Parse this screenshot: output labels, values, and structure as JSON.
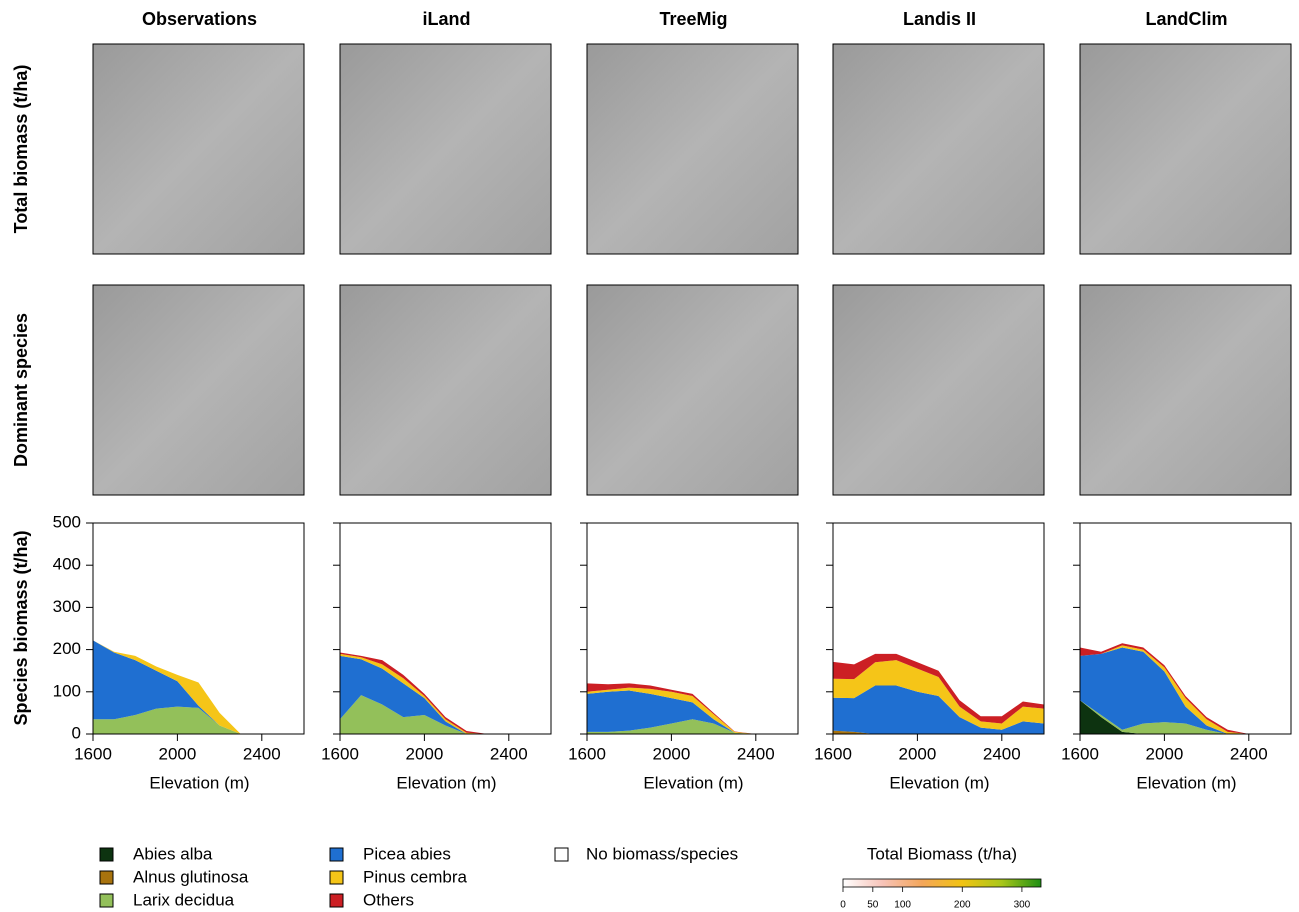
{
  "row_labels": [
    "Total biomass (t/ha)",
    "Dominant species"
  ],
  "legend_extra": "No biomass/species",
  "colorbar": {
    "title": "Total Biomass (t/ha)",
    "lim": [
      0,
      332
    ],
    "ticks": [
      0,
      50,
      100,
      200,
      300
    ],
    "colors": [
      "#ffffff",
      "#f7c3b8",
      "#f4a65a",
      "#f2c313",
      "#a9c61a",
      "#1f8f14"
    ]
  },
  "chart_data": [
    {
      "type": "area",
      "title": "Observations",
      "xlabel": "Elevation (m)",
      "ylabel": "Species biomass (t/ha)",
      "x": [
        1600,
        1700,
        1800,
        1900,
        2000,
        2100,
        2200,
        2300,
        2400,
        2500,
        2600
      ],
      "xlim": [
        1600,
        2600
      ],
      "xticks": [
        1600,
        2000,
        2400
      ],
      "ylim": [
        0,
        500
      ],
      "yticks": [
        0,
        100,
        200,
        300,
        400,
        500
      ],
      "series": [
        {
          "name": "Abies alba",
          "color": "#0d3310",
          "values": [
            0,
            0,
            0,
            0,
            0,
            0,
            0,
            0,
            0,
            0,
            0
          ]
        },
        {
          "name": "Alnus glutinosa",
          "color": "#a8730e",
          "values": [
            0,
            0,
            0,
            0,
            0,
            0,
            0,
            0,
            0,
            0,
            0
          ]
        },
        {
          "name": "Larix decidua",
          "color": "#93c05a",
          "values": [
            35,
            35,
            45,
            60,
            65,
            62,
            20,
            0,
            0,
            0,
            0
          ]
        },
        {
          "name": "Picea abies",
          "color": "#1f6fd1",
          "values": [
            187,
            158,
            130,
            90,
            60,
            5,
            0,
            0,
            0,
            0,
            0
          ]
        },
        {
          "name": "Pinus cembra",
          "color": "#f5c518",
          "values": [
            0,
            2,
            10,
            10,
            15,
            55,
            30,
            0,
            0,
            0,
            0
          ]
        },
        {
          "name": "Others",
          "color": "#cc1f24",
          "values": [
            0,
            0,
            0,
            0,
            0,
            0,
            0,
            0,
            0,
            0,
            0
          ]
        }
      ]
    },
    {
      "type": "area",
      "title": "iLand",
      "xlabel": "Elevation (m)",
      "x": [
        1600,
        1700,
        1800,
        1900,
        2000,
        2100,
        2200,
        2300,
        2400,
        2500,
        2600
      ],
      "xlim": [
        1600,
        2600
      ],
      "xticks": [
        1600,
        2000,
        2400
      ],
      "ylim": [
        0,
        500
      ],
      "yticks": [
        0,
        100,
        200,
        300,
        400,
        500
      ],
      "series": [
        {
          "name": "Abies alba",
          "color": "#0d3310",
          "values": [
            0,
            0,
            0,
            0,
            0,
            0,
            0,
            0,
            0,
            0,
            0
          ]
        },
        {
          "name": "Alnus glutinosa",
          "color": "#a8730e",
          "values": [
            0,
            0,
            0,
            0,
            0,
            0,
            0,
            0,
            0,
            0,
            0
          ]
        },
        {
          "name": "Larix decidua",
          "color": "#93c05a",
          "values": [
            35,
            92,
            70,
            40,
            45,
            20,
            0,
            0,
            0,
            0,
            0
          ]
        },
        {
          "name": "Picea abies",
          "color": "#1f6fd1",
          "values": [
            150,
            85,
            85,
            80,
            40,
            10,
            0,
            0,
            0,
            0,
            0
          ]
        },
        {
          "name": "Pinus cembra",
          "color": "#f5c518",
          "values": [
            5,
            5,
            10,
            12,
            5,
            5,
            3,
            0,
            0,
            0,
            0
          ]
        },
        {
          "name": "Others",
          "color": "#cc1f24",
          "values": [
            3,
            3,
            10,
            8,
            5,
            5,
            4,
            0,
            0,
            0,
            0
          ]
        }
      ]
    },
    {
      "type": "area",
      "title": "TreeMig",
      "xlabel": "Elevation (m)",
      "x": [
        1600,
        1700,
        1800,
        1900,
        2000,
        2100,
        2200,
        2300,
        2400,
        2500,
        2600
      ],
      "xlim": [
        1600,
        2600
      ],
      "xticks": [
        1600,
        2000,
        2400
      ],
      "ylim": [
        0,
        500
      ],
      "yticks": [
        0,
        100,
        200,
        300,
        400,
        500
      ],
      "series": [
        {
          "name": "Abies alba",
          "color": "#0d3310",
          "values": [
            0,
            0,
            0,
            0,
            0,
            0,
            0,
            0,
            0,
            0,
            0
          ]
        },
        {
          "name": "Alnus glutinosa",
          "color": "#a8730e",
          "values": [
            0,
            0,
            0,
            0,
            0,
            0,
            0,
            0,
            0,
            0,
            0
          ]
        },
        {
          "name": "Larix decidua",
          "color": "#93c05a",
          "values": [
            5,
            5,
            8,
            15,
            25,
            35,
            25,
            3,
            0,
            0,
            0
          ]
        },
        {
          "name": "Picea abies",
          "color": "#1f6fd1",
          "values": [
            90,
            95,
            95,
            80,
            60,
            40,
            10,
            0,
            0,
            0,
            0
          ]
        },
        {
          "name": "Pinus cembra",
          "color": "#f5c518",
          "values": [
            5,
            5,
            7,
            12,
            15,
            15,
            12,
            2,
            0,
            0,
            0
          ]
        },
        {
          "name": "Others",
          "color": "#cc1f24",
          "values": [
            20,
            13,
            10,
            8,
            5,
            5,
            3,
            1,
            0,
            0,
            0
          ]
        }
      ]
    },
    {
      "type": "area",
      "title": "Landis II",
      "xlabel": "Elevation (m)",
      "x": [
        1600,
        1700,
        1800,
        1900,
        2000,
        2100,
        2200,
        2300,
        2400,
        2500,
        2600
      ],
      "xlim": [
        1600,
        2600
      ],
      "xticks": [
        1600,
        2000,
        2400
      ],
      "ylim": [
        0,
        500
      ],
      "yticks": [
        0,
        100,
        200,
        300,
        400,
        500
      ],
      "series": [
        {
          "name": "Abies alba",
          "color": "#0d3310",
          "values": [
            0,
            0,
            0,
            0,
            0,
            0,
            0,
            0,
            0,
            0,
            0
          ]
        },
        {
          "name": "Alnus glutinosa",
          "color": "#a8730e",
          "values": [
            8,
            5,
            0,
            0,
            0,
            0,
            0,
            0,
            0,
            0,
            0
          ]
        },
        {
          "name": "Larix decidua",
          "color": "#93c05a",
          "values": [
            0,
            0,
            0,
            0,
            0,
            0,
            0,
            0,
            0,
            0,
            0
          ]
        },
        {
          "name": "Picea abies",
          "color": "#1f6fd1",
          "values": [
            78,
            80,
            115,
            115,
            100,
            90,
            40,
            15,
            10,
            30,
            25
          ]
        },
        {
          "name": "Pinus cembra",
          "color": "#f5c518",
          "values": [
            45,
            45,
            55,
            60,
            55,
            45,
            25,
            15,
            15,
            35,
            35
          ]
        },
        {
          "name": "Others",
          "color": "#cc1f24",
          "values": [
            40,
            35,
            20,
            15,
            15,
            15,
            15,
            12,
            17,
            12,
            10
          ]
        }
      ]
    },
    {
      "type": "area",
      "title": "LandClim",
      "xlabel": "Elevation (m)",
      "x": [
        1600,
        1700,
        1800,
        1900,
        2000,
        2100,
        2200,
        2300,
        2400,
        2500,
        2600
      ],
      "xlim": [
        1600,
        2600
      ],
      "xticks": [
        1600,
        2000,
        2400
      ],
      "ylim": [
        0,
        500
      ],
      "yticks": [
        0,
        100,
        200,
        300,
        400,
        500
      ],
      "series": [
        {
          "name": "Abies alba",
          "color": "#0d3310",
          "values": [
            80,
            40,
            5,
            0,
            0,
            0,
            0,
            0,
            0,
            0,
            0
          ]
        },
        {
          "name": "Alnus glutinosa",
          "color": "#a8730e",
          "values": [
            0,
            0,
            0,
            0,
            0,
            0,
            0,
            0,
            0,
            0,
            0
          ]
        },
        {
          "name": "Larix decidua",
          "color": "#93c05a",
          "values": [
            0,
            5,
            5,
            25,
            28,
            25,
            10,
            0,
            0,
            0,
            0
          ]
        },
        {
          "name": "Picea abies",
          "color": "#1f6fd1",
          "values": [
            105,
            145,
            195,
            170,
            120,
            40,
            10,
            0,
            0,
            0,
            0
          ]
        },
        {
          "name": "Pinus cembra",
          "color": "#f5c518",
          "values": [
            0,
            0,
            5,
            5,
            10,
            20,
            15,
            5,
            0,
            0,
            0
          ]
        },
        {
          "name": "Others",
          "color": "#cc1f24",
          "values": [
            20,
            5,
            5,
            5,
            5,
            5,
            5,
            5,
            0,
            0,
            0
          ]
        }
      ]
    }
  ]
}
